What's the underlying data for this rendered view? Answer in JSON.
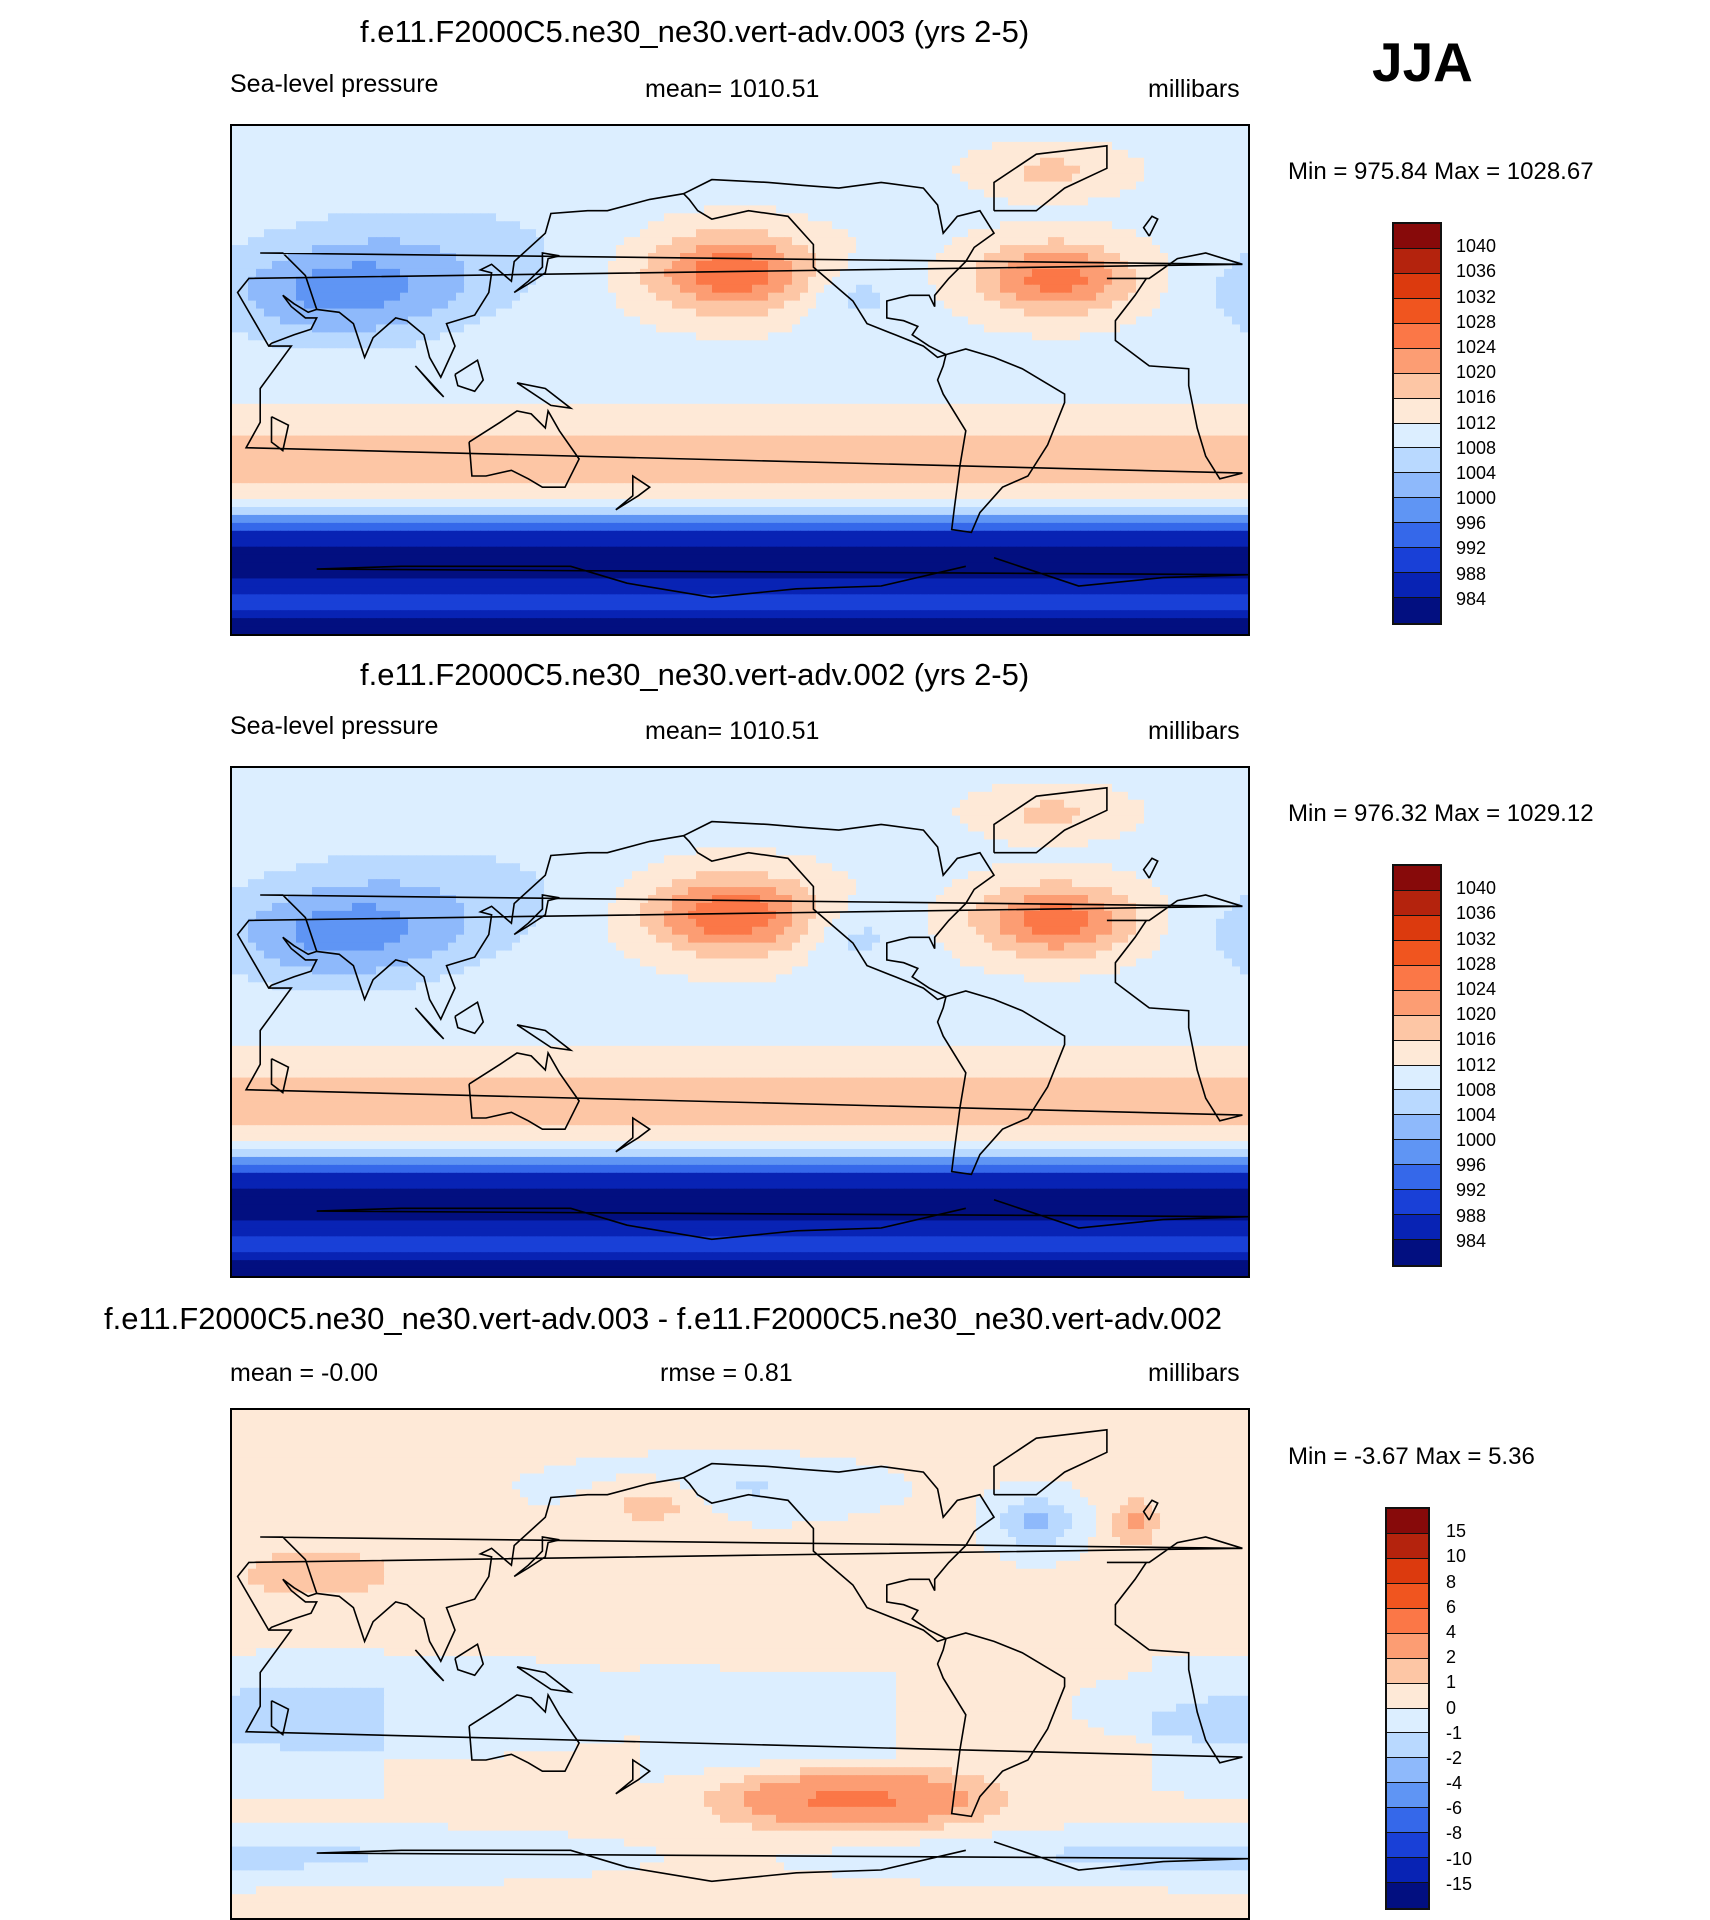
{
  "season": "JJA",
  "panels": [
    {
      "title": "f.e11.F2000C5.ne30_ne30.vert-adv.003 (yrs 2-5)",
      "left_label": "Sea-level pressure",
      "center_label": "mean= 1010.51",
      "units": "millibars",
      "minmax": "Min = 975.84 Max = 1028.67",
      "field": "slp_003"
    },
    {
      "title": "f.e11.F2000C5.ne30_ne30.vert-adv.002 (yrs 2-5)",
      "left_label": "Sea-level pressure",
      "center_label": "mean= 1010.51",
      "units": "millibars",
      "minmax": "Min = 976.32 Max = 1029.12",
      "field": "slp_002"
    },
    {
      "title": "f.e11.F2000C5.ne30_ne30.vert-adv.003 - f.e11.F2000C5.ne30_ne30.vert-adv.002",
      "left_label": "mean =  -0.00",
      "center_label": "rmse =   0.81",
      "units": "millibars",
      "minmax": "Min =  -3.67 Max =   5.36",
      "field": "diff"
    }
  ],
  "colorbars": {
    "slp": {
      "labels": [
        "1040",
        "1036",
        "1032",
        "1028",
        "1024",
        "1020",
        "1016",
        "1012",
        "1008",
        "1004",
        "1000",
        "996",
        "992",
        "988",
        "984"
      ],
      "colors": [
        "#870a0a",
        "#b4230d",
        "#dc3a0e",
        "#f0551f",
        "#fb7747",
        "#fc9d73",
        "#fdc6a5",
        "#fee9d7",
        "#dceeff",
        "#b9d9ff",
        "#8eb9fb",
        "#5f95f4",
        "#3568ea",
        "#1940d7",
        "#0823b4",
        "#020f80"
      ]
    },
    "diff": {
      "labels": [
        "15",
        "10",
        "8",
        "6",
        "4",
        "2",
        "1",
        "0",
        "-1",
        "-2",
        "-4",
        "-6",
        "-8",
        "-10",
        "-15"
      ],
      "colors": [
        "#870a0a",
        "#b4230d",
        "#dc3a0e",
        "#f0551f",
        "#fb7747",
        "#fc9d73",
        "#fdc6a5",
        "#fee9d7",
        "#dceeff",
        "#b9d9ff",
        "#8eb9fb",
        "#5f95f4",
        "#3568ea",
        "#1940d7",
        "#0823b4",
        "#020f80"
      ]
    }
  }
}
